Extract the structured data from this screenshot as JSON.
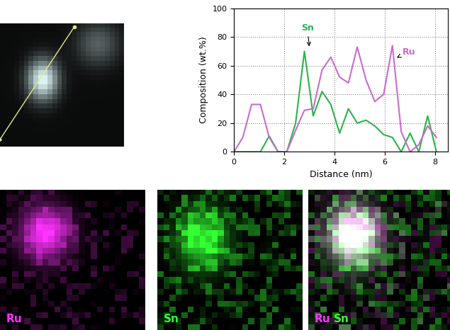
{
  "chart_data": {
    "type": "line",
    "xlabel": "Distance (nm)",
    "ylabel": "Composition (wt.%)",
    "x": [
      0,
      0.35,
      0.7,
      1.05,
      1.4,
      1.75,
      2.1,
      2.45,
      2.8,
      3.15,
      3.5,
      3.85,
      4.2,
      4.55,
      4.9,
      5.25,
      5.6,
      5.95,
      6.3,
      6.65,
      7.0,
      7.35,
      7.7,
      8.05
    ],
    "series": [
      {
        "name": "Sn",
        "color": "#2db34a",
        "values": [
          0,
          0,
          0,
          0,
          11,
          0,
          0,
          20,
          70,
          25,
          42,
          33,
          13,
          30,
          20,
          22,
          18,
          12,
          10,
          0,
          13,
          0,
          25,
          0
        ]
      },
      {
        "name": "Ru",
        "color": "#c86ccf",
        "values": [
          0,
          10,
          33,
          33,
          10,
          0,
          0,
          15,
          29,
          30,
          57,
          66,
          52,
          48,
          73,
          50,
          35,
          40,
          74,
          14,
          0,
          5,
          18,
          10
        ]
      }
    ],
    "annotations": [
      {
        "text": "Sn",
        "x": 3.0,
        "y": 72
      },
      {
        "text": "Ru",
        "x": 6.4,
        "y": 65
      }
    ],
    "xlim": [
      0,
      8.5
    ],
    "xticks": [
      0,
      2,
      4,
      6,
      8
    ],
    "ylim": [
      0,
      100
    ],
    "yticks": [
      0,
      20,
      40,
      60,
      80,
      100
    ],
    "grid": true
  },
  "maps": [
    {
      "label": "Ru",
      "color": "#ff33ff"
    },
    {
      "label": "Sn",
      "color": "#33ff33"
    }
  ]
}
